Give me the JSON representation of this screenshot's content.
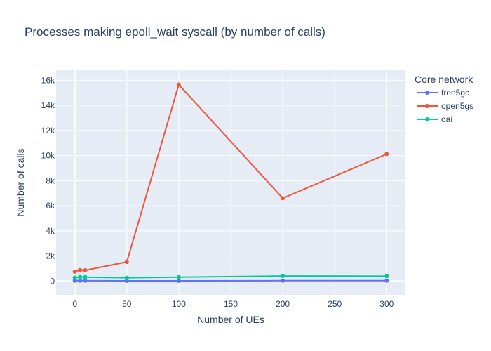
{
  "chart_data": {
    "type": "line",
    "title": "Processes making epoll_wait syscall (by number of calls)",
    "xlabel": "Number of UEs",
    "ylabel": "Number of calls",
    "xlim": [
      -18,
      318
    ],
    "ylim": [
      -1100,
      16800
    ],
    "x_ticks": [
      0,
      50,
      100,
      150,
      200,
      250,
      300
    ],
    "x_tick_labels": [
      "0",
      "50",
      "100",
      "150",
      "200",
      "250",
      "300"
    ],
    "y_ticks": [
      0,
      2000,
      4000,
      6000,
      8000,
      10000,
      12000,
      14000,
      16000
    ],
    "y_tick_labels": [
      "0",
      "2k",
      "4k",
      "6k",
      "8k",
      "10k",
      "12k",
      "14k",
      "16k"
    ],
    "grid": true,
    "legend_title": "Core network",
    "legend_position": "right",
    "x": [
      0,
      5,
      10,
      50,
      100,
      200,
      300
    ],
    "series": [
      {
        "name": "free5gc",
        "color": "#636efa",
        "values": [
          30,
          30,
          30,
          20,
          20,
          30,
          30
        ]
      },
      {
        "name": "open5gs",
        "color": "#ef553b",
        "values": [
          750,
          870,
          860,
          1520,
          15650,
          6600,
          10120
        ]
      },
      {
        "name": "oai",
        "color": "#00cc96",
        "values": [
          270,
          320,
          310,
          260,
          310,
          400,
          390
        ]
      }
    ],
    "colors": {
      "plot_bg": "#e5ecf6",
      "grid": "#ffffff",
      "text": "#2a3f5f"
    }
  }
}
